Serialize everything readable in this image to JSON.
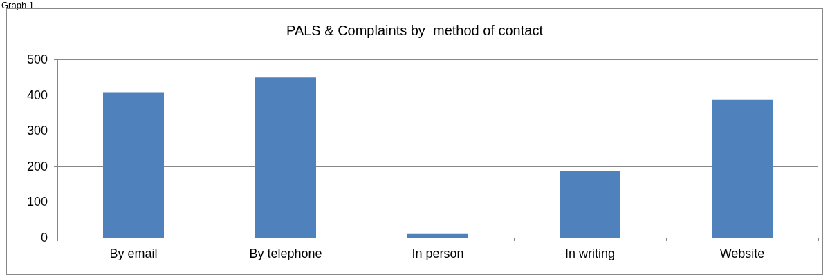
{
  "chart_data": {
    "type": "bar",
    "title": "PALS & Complaints by  method of contact",
    "annotations": [
      "Graph 1"
    ],
    "categories": [
      "By email",
      "By telephone",
      "In person",
      "In writing",
      "Website"
    ],
    "values": [
      408,
      449,
      10,
      188,
      386
    ],
    "color": "#4f81bd",
    "ylim": [
      0,
      500
    ],
    "yticks": [
      0,
      100,
      200,
      300,
      400,
      500
    ],
    "grid": "y"
  }
}
